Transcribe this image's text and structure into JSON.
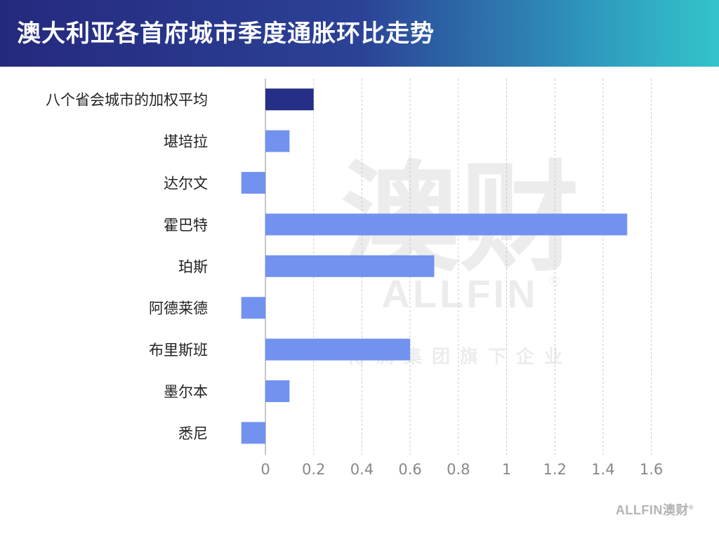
{
  "header": {
    "title": "澳大利亚各首府城市季度通胀环比走势"
  },
  "watermark": {
    "cn": "澳财",
    "en": "ALLFIN",
    "sub": "博满集团旗下企业",
    "mark": "®"
  },
  "footer": {
    "logo": "ALLFIN澳财",
    "mark": "®"
  },
  "colors": {
    "highlight_bar": "#262f86",
    "bar": "#7292f0",
    "grid": "#c8c8c8",
    "axis": "#b4b4b4",
    "tick_text": "#888888",
    "category_text": "#222222"
  },
  "chart_data": {
    "type": "bar",
    "orientation": "horizontal",
    "categories": [
      "八个省会城市的加权平均",
      "堪培拉",
      "达尔文",
      "霍巴特",
      "珀斯",
      "阿德莱德",
      "布里斯班",
      "墨尔本",
      "悉尼"
    ],
    "values": [
      0.2,
      0.1,
      -0.1,
      1.5,
      0.7,
      -0.1,
      0.6,
      0.1,
      -0.1
    ],
    "highlight_index": 0,
    "xlim": [
      -0.1,
      1.6
    ],
    "xticks": [
      0,
      0.2,
      0.4,
      0.6,
      0.8,
      1,
      1.2,
      1.4,
      1.6
    ],
    "xtick_labels": [
      "0",
      "0.2",
      "0.4",
      "0.6",
      "0.8",
      "1",
      "1.2",
      "1.4",
      "1.6"
    ],
    "grid": "vertical dashed",
    "title": "",
    "xlabel": "",
    "ylabel": ""
  }
}
